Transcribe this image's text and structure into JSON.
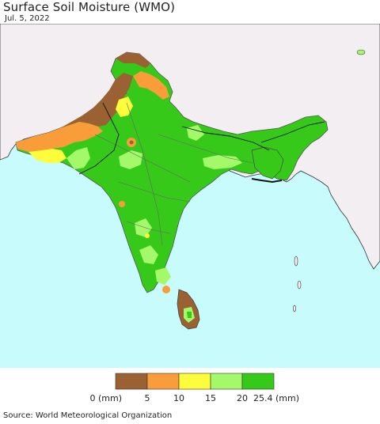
{
  "title": "Surface Soil Moisture (WMO)",
  "date": "Jul. 5, 2022",
  "source": "Source: World Meteorological Organization",
  "legend": {
    "ticks": [
      "0 (mm)",
      "5",
      "10",
      "15",
      "20",
      "25.4 (mm)"
    ],
    "colors": [
      "#9a6132",
      "#f99d3a",
      "#fdfd3c",
      "#a3f96a",
      "#37c91a"
    ]
  },
  "map_colors": {
    "ocean": "#c8fcfc",
    "land_other": "#f2eef2",
    "border": "#111111"
  }
}
